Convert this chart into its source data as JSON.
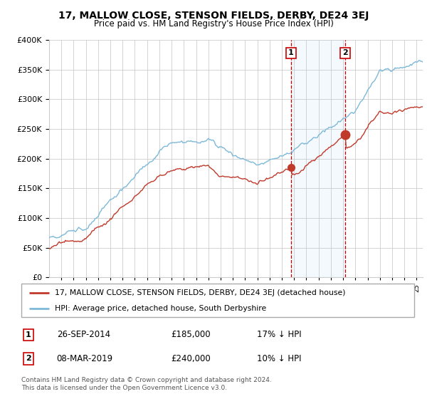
{
  "title": "17, MALLOW CLOSE, STENSON FIELDS, DERBY, DE24 3EJ",
  "subtitle": "Price paid vs. HM Land Registry's House Price Index (HPI)",
  "legend_entry1": "17, MALLOW CLOSE, STENSON FIELDS, DERBY, DE24 3EJ (detached house)",
  "legend_entry2": "HPI: Average price, detached house, South Derbyshire",
  "annotation1_label": "1",
  "annotation1_date": "26-SEP-2014",
  "annotation1_price": "£185,000",
  "annotation1_hpi": "17% ↓ HPI",
  "annotation2_label": "2",
  "annotation2_date": "08-MAR-2019",
  "annotation2_price": "£240,000",
  "annotation2_hpi": "10% ↓ HPI",
  "footer": "Contains HM Land Registry data © Crown copyright and database right 2024.\nThis data is licensed under the Open Government Licence v3.0.",
  "sale1_year": 2014.75,
  "sale1_value": 185000,
  "sale2_year": 2019.17,
  "sale2_value": 240000,
  "hpi_color": "#7db9d8",
  "price_color": "#c0392b",
  "annotation_vline_color": "#cc0000",
  "grid_color": "#cccccc",
  "background_color": "#ffffff",
  "ylim_min": 0,
  "ylim_max": 400000,
  "xlim_min": 1995.0,
  "xlim_max": 2025.5
}
